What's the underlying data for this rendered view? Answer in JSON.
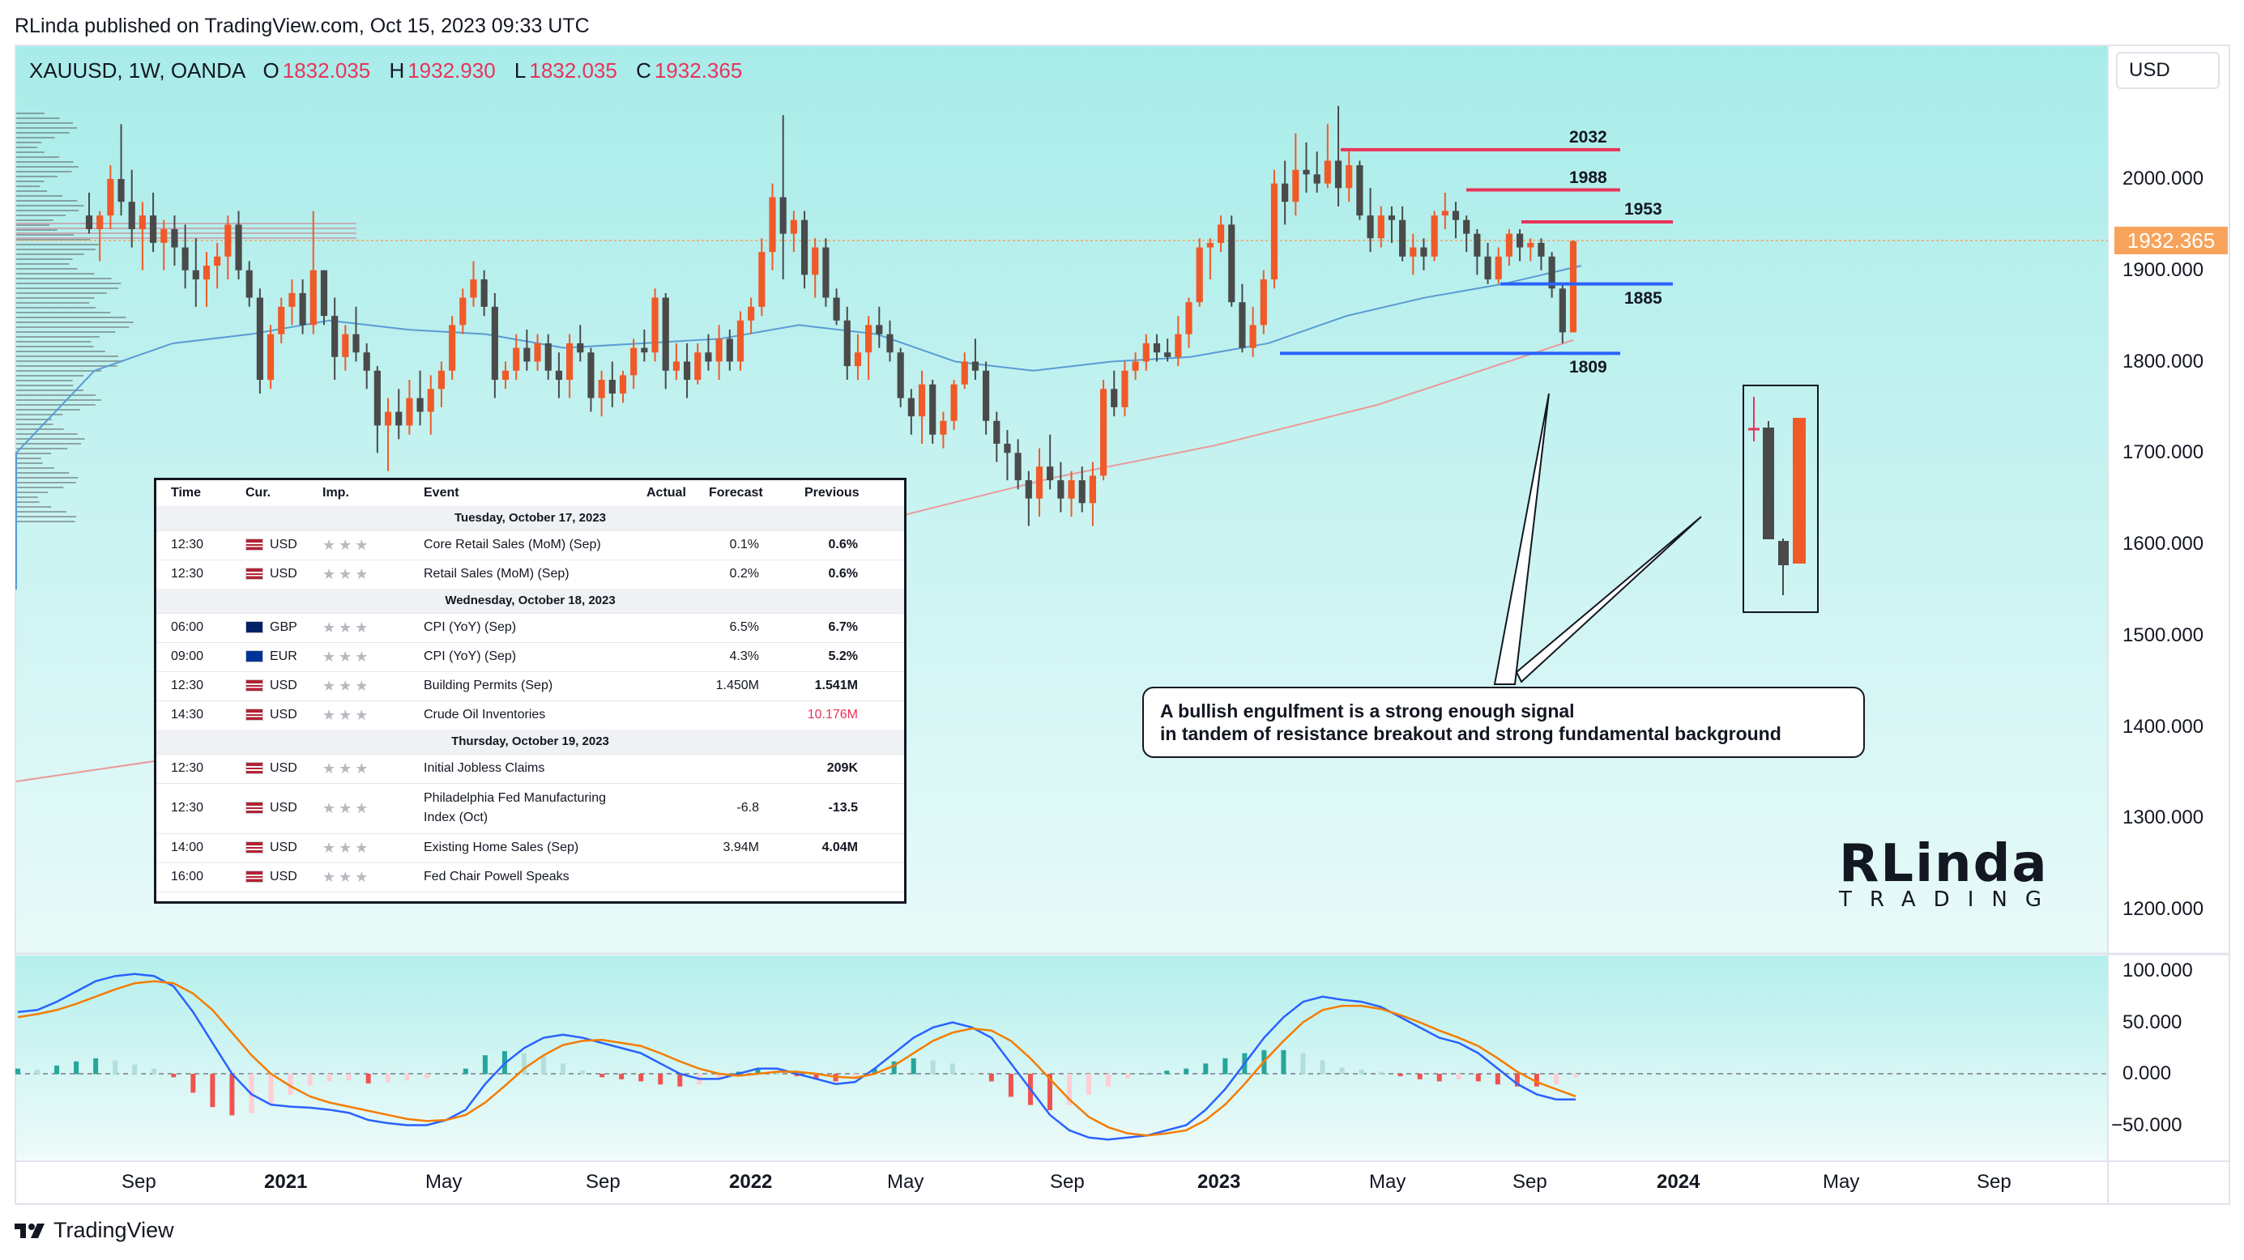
{
  "header": {
    "published": "RLinda published on TradingView.com, Oct 15, 2023 09:33 UTC"
  },
  "legend": {
    "symbol": "XAUUSD, 1W, OANDA",
    "o_label": "O",
    "o_value": "1832.035",
    "h_label": "H",
    "h_value": "1932.930",
    "l_label": "L",
    "l_value": "1832.035",
    "c_label": "C",
    "c_value": "1932.365"
  },
  "currency_button": "USD",
  "last_price_tag": "1932.365",
  "footer_brand": "TradingView",
  "colors": {
    "up": "#f05a28",
    "down": "#4a4a4a",
    "resistance": "#e8345a",
    "support": "#2962ff",
    "bg_top": "#b2f0ee",
    "ema_blue": "#5b9bd5",
    "sma_red": "#e89a9a"
  },
  "chart_data": [
    {
      "type": "candlestick",
      "title": "",
      "xlabel": "",
      "ylabel": "",
      "x_ticks": [
        "Sep",
        "2021",
        "May",
        "Sep",
        "2022",
        "May",
        "Sep",
        "2023",
        "May",
        "Sep",
        "2024",
        "May",
        "Sep"
      ],
      "y_ticks": [
        "2000.000",
        "1900.000",
        "1800.000",
        "1700.000",
        "1600.000",
        "1500.000",
        "1400.000",
        "1300.000",
        "1200.000"
      ],
      "ylim": [
        1150,
        2070
      ],
      "candles": [
        [
          1960,
          1985,
          1940,
          1945
        ],
        [
          1945,
          1965,
          1910,
          1960
        ],
        [
          1960,
          2015,
          1945,
          2000
        ],
        [
          2000,
          2060,
          1960,
          1975
        ],
        [
          1975,
          2010,
          1925,
          1945
        ],
        [
          1945,
          1975,
          1900,
          1960
        ],
        [
          1960,
          1985,
          1920,
          1930
        ],
        [
          1930,
          1955,
          1900,
          1945
        ],
        [
          1945,
          1960,
          1905,
          1925
        ],
        [
          1925,
          1950,
          1880,
          1900
        ],
        [
          1900,
          1935,
          1860,
          1890
        ],
        [
          1890,
          1920,
          1860,
          1905
        ],
        [
          1905,
          1930,
          1880,
          1915
        ],
        [
          1915,
          1960,
          1890,
          1950
        ],
        [
          1950,
          1965,
          1890,
          1900
        ],
        [
          1900,
          1910,
          1860,
          1870
        ],
        [
          1870,
          1880,
          1765,
          1780
        ],
        [
          1780,
          1840,
          1770,
          1830
        ],
        [
          1830,
          1870,
          1820,
          1860
        ],
        [
          1860,
          1890,
          1840,
          1875
        ],
        [
          1875,
          1890,
          1830,
          1840
        ],
        [
          1840,
          1965,
          1830,
          1900
        ],
        [
          1900,
          1900,
          1840,
          1850
        ],
        [
          1850,
          1870,
          1780,
          1805
        ],
        [
          1805,
          1840,
          1790,
          1830
        ],
        [
          1830,
          1860,
          1800,
          1810
        ],
        [
          1810,
          1820,
          1770,
          1790
        ],
        [
          1790,
          1795,
          1700,
          1730
        ],
        [
          1730,
          1760,
          1680,
          1745
        ],
        [
          1745,
          1770,
          1715,
          1730
        ],
        [
          1730,
          1780,
          1720,
          1760
        ],
        [
          1760,
          1790,
          1730,
          1745
        ],
        [
          1745,
          1785,
          1720,
          1770
        ],
        [
          1770,
          1800,
          1750,
          1790
        ],
        [
          1790,
          1850,
          1780,
          1840
        ],
        [
          1840,
          1880,
          1830,
          1870
        ],
        [
          1870,
          1910,
          1860,
          1890
        ],
        [
          1890,
          1900,
          1850,
          1860
        ],
        [
          1860,
          1875,
          1760,
          1780
        ],
        [
          1780,
          1800,
          1770,
          1790
        ],
        [
          1790,
          1830,
          1780,
          1815
        ],
        [
          1815,
          1835,
          1790,
          1800
        ],
        [
          1800,
          1830,
          1790,
          1820
        ],
        [
          1820,
          1830,
          1780,
          1790
        ],
        [
          1790,
          1810,
          1760,
          1780
        ],
        [
          1780,
          1830,
          1760,
          1820
        ],
        [
          1820,
          1840,
          1800,
          1810
        ],
        [
          1810,
          1815,
          1745,
          1760
        ],
        [
          1760,
          1790,
          1740,
          1780
        ],
        [
          1780,
          1800,
          1750,
          1765
        ],
        [
          1765,
          1790,
          1755,
          1785
        ],
        [
          1785,
          1825,
          1770,
          1815
        ],
        [
          1815,
          1835,
          1800,
          1810
        ],
        [
          1810,
          1880,
          1800,
          1870
        ],
        [
          1870,
          1875,
          1770,
          1790
        ],
        [
          1790,
          1820,
          1780,
          1800
        ],
        [
          1800,
          1820,
          1760,
          1780
        ],
        [
          1780,
          1820,
          1775,
          1810
        ],
        [
          1810,
          1830,
          1790,
          1800
        ],
        [
          1800,
          1840,
          1780,
          1825
        ],
        [
          1825,
          1835,
          1790,
          1800
        ],
        [
          1800,
          1855,
          1790,
          1845
        ],
        [
          1845,
          1870,
          1830,
          1860
        ],
        [
          1860,
          1935,
          1850,
          1920
        ],
        [
          1920,
          1995,
          1900,
          1980
        ],
        [
          1980,
          2070,
          1890,
          1940
        ],
        [
          1940,
          1965,
          1920,
          1955
        ],
        [
          1955,
          1965,
          1880,
          1895
        ],
        [
          1895,
          1935,
          1870,
          1925
        ],
        [
          1925,
          1935,
          1860,
          1870
        ],
        [
          1870,
          1880,
          1840,
          1845
        ],
        [
          1845,
          1860,
          1780,
          1795
        ],
        [
          1795,
          1830,
          1780,
          1810
        ],
        [
          1810,
          1850,
          1780,
          1840
        ],
        [
          1840,
          1860,
          1815,
          1830
        ],
        [
          1830,
          1845,
          1800,
          1810
        ],
        [
          1810,
          1815,
          1750,
          1760
        ],
        [
          1760,
          1770,
          1720,
          1740
        ],
        [
          1740,
          1790,
          1710,
          1775
        ],
        [
          1775,
          1780,
          1710,
          1720
        ],
        [
          1720,
          1745,
          1705,
          1735
        ],
        [
          1735,
          1780,
          1725,
          1775
        ],
        [
          1775,
          1810,
          1770,
          1800
        ],
        [
          1800,
          1825,
          1780,
          1790
        ],
        [
          1790,
          1800,
          1720,
          1735
        ],
        [
          1735,
          1745,
          1690,
          1710
        ],
        [
          1710,
          1725,
          1670,
          1700
        ],
        [
          1700,
          1715,
          1660,
          1670
        ],
        [
          1670,
          1680,
          1620,
          1650
        ],
        [
          1650,
          1705,
          1630,
          1685
        ],
        [
          1685,
          1720,
          1660,
          1670
        ],
        [
          1670,
          1690,
          1635,
          1650
        ],
        [
          1650,
          1680,
          1630,
          1670
        ],
        [
          1670,
          1685,
          1635,
          1645
        ],
        [
          1645,
          1690,
          1620,
          1675
        ],
        [
          1675,
          1780,
          1670,
          1770
        ],
        [
          1770,
          1790,
          1740,
          1750
        ],
        [
          1750,
          1800,
          1740,
          1790
        ],
        [
          1790,
          1810,
          1780,
          1800
        ],
        [
          1800,
          1830,
          1790,
          1820
        ],
        [
          1820,
          1830,
          1800,
          1810
        ],
        [
          1810,
          1825,
          1800,
          1805
        ],
        [
          1805,
          1850,
          1795,
          1830
        ],
        [
          1830,
          1870,
          1815,
          1865
        ],
        [
          1865,
          1935,
          1860,
          1925
        ],
        [
          1925,
          1935,
          1890,
          1930
        ],
        [
          1930,
          1960,
          1920,
          1950
        ],
        [
          1950,
          1960,
          1860,
          1865
        ],
        [
          1865,
          1885,
          1810,
          1815
        ],
        [
          1815,
          1860,
          1805,
          1840
        ],
        [
          1840,
          1900,
          1830,
          1890
        ],
        [
          1890,
          2010,
          1880,
          1995
        ],
        [
          1995,
          2020,
          1950,
          1975
        ],
        [
          1975,
          2050,
          1960,
          2010
        ],
        [
          2010,
          2040,
          1985,
          2005
        ],
        [
          2005,
          2030,
          1985,
          1995
        ],
        [
          1995,
          2060,
          1990,
          2020
        ],
        [
          2020,
          2080,
          1970,
          1990
        ],
        [
          1990,
          2030,
          1975,
          2015
        ],
        [
          2015,
          2020,
          1955,
          1960
        ],
        [
          1960,
          1990,
          1920,
          1935
        ],
        [
          1935,
          1970,
          1925,
          1960
        ],
        [
          1960,
          1970,
          1930,
          1955
        ],
        [
          1955,
          1970,
          1910,
          1915
        ],
        [
          1915,
          1940,
          1895,
          1925
        ],
        [
          1925,
          1935,
          1900,
          1915
        ],
        [
          1915,
          1965,
          1910,
          1960
        ],
        [
          1960,
          1985,
          1945,
          1965
        ],
        [
          1965,
          1975,
          1935,
          1955
        ],
        [
          1955,
          1960,
          1920,
          1940
        ],
        [
          1940,
          1945,
          1895,
          1915
        ],
        [
          1915,
          1930,
          1885,
          1890
        ],
        [
          1890,
          1925,
          1885,
          1915
        ],
        [
          1915,
          1945,
          1905,
          1940
        ],
        [
          1940,
          1945,
          1910,
          1925
        ],
        [
          1925,
          1935,
          1910,
          1930
        ],
        [
          1930,
          1935,
          1900,
          1915
        ],
        [
          1915,
          1920,
          1870,
          1880
        ],
        [
          1880,
          1885,
          1820,
          1832
        ],
        [
          1832,
          1933,
          1832,
          1932
        ]
      ],
      "levels": [
        {
          "label": "2032",
          "value": 2032,
          "color": "resistance"
        },
        {
          "label": "1988",
          "value": 1988,
          "color": "resistance"
        },
        {
          "label": "1953",
          "value": 1953,
          "color": "resistance"
        },
        {
          "label": "1885",
          "value": 1885,
          "color": "support"
        },
        {
          "label": "1809",
          "value": 1809,
          "color": "support"
        }
      ]
    },
    {
      "type": "line",
      "title": "",
      "y_ticks": [
        "100.000",
        "50.000",
        "0.000",
        "−50.000"
      ],
      "ylim": [
        -80,
        110
      ],
      "series": [
        {
          "values": [
            60,
            62,
            70,
            80,
            90,
            95,
            97,
            95,
            85,
            60,
            30,
            0,
            -20,
            -30,
            -32,
            -33,
            -35,
            -38,
            -45,
            -48,
            -50,
            -50,
            -45,
            -35,
            -10,
            10,
            25,
            35,
            38,
            35,
            30,
            25,
            20,
            10,
            0,
            -5,
            -5,
            0,
            5,
            5,
            0,
            -5,
            -10,
            -8,
            5,
            20,
            35,
            45,
            50,
            45,
            35,
            10,
            -15,
            -40,
            -55,
            -62,
            -64,
            -62,
            -60,
            -55,
            -50,
            -35,
            -15,
            10,
            35,
            55,
            70,
            75,
            72,
            70,
            65,
            55,
            45,
            35,
            30,
            20,
            5,
            -10,
            -20,
            -25,
            -25
          ]
        },
        {
          "values": [
            55,
            58,
            62,
            68,
            75,
            82,
            88,
            90,
            88,
            78,
            62,
            40,
            18,
            0,
            -12,
            -22,
            -28,
            -32,
            -36,
            -40,
            -44,
            -46,
            -45,
            -40,
            -28,
            -12,
            5,
            18,
            28,
            32,
            33,
            30,
            27,
            20,
            12,
            5,
            0,
            -2,
            0,
            2,
            2,
            0,
            -3,
            -4,
            0,
            8,
            20,
            32,
            40,
            44,
            42,
            32,
            15,
            -5,
            -25,
            -42,
            -52,
            -58,
            -60,
            -58,
            -55,
            -45,
            -30,
            -10,
            12,
            32,
            50,
            62,
            66,
            66,
            63,
            57,
            50,
            42,
            35,
            27,
            15,
            2,
            -8,
            -15,
            -22
          ]
        }
      ],
      "histogram": [
        5,
        4,
        8,
        12,
        15,
        13,
        9,
        5,
        -3,
        -18,
        -32,
        -40,
        -38,
        -30,
        -20,
        -11,
        -7,
        -6,
        -9,
        -8,
        -6,
        -4,
        0,
        5,
        18,
        22,
        20,
        17,
        10,
        3,
        -3,
        -5,
        -7,
        -10,
        -12,
        -10,
        -5,
        2,
        5,
        3,
        -2,
        -5,
        -7,
        -4,
        5,
        12,
        15,
        13,
        10,
        1,
        -7,
        -22,
        -30,
        -35,
        -30,
        -20,
        -12,
        -4,
        0,
        3,
        5,
        10,
        15,
        20,
        23,
        23,
        20,
        13,
        6,
        4,
        2,
        -2,
        -5,
        -7,
        -5,
        -7,
        -10,
        -12,
        -12,
        -10,
        -3
      ]
    }
  ],
  "calendar": {
    "headers": {
      "time": "Time",
      "cur": "Cur.",
      "imp": "Imp.",
      "event": "Event",
      "actual": "Actual",
      "forecast": "Forecast",
      "previous": "Previous"
    },
    "stars": "★★★",
    "day1": "Tuesday, October 17, 2023",
    "day2": "Wednesday, October 18, 2023",
    "day3": "Thursday, October 19, 2023",
    "rows": [
      {
        "time": "12:30",
        "cur": "USD",
        "event": "Core Retail Sales (MoM) (Sep)",
        "forecast": "0.1%",
        "previous": "0.6%"
      },
      {
        "time": "12:30",
        "cur": "USD",
        "event": "Retail Sales (MoM) (Sep)",
        "forecast": "0.2%",
        "previous": "0.6%"
      },
      {
        "time": "06:00",
        "cur": "GBP",
        "event": "CPI (YoY) (Sep)",
        "forecast": "6.5%",
        "previous": "6.7%"
      },
      {
        "time": "09:00",
        "cur": "EUR",
        "event": "CPI (YoY) (Sep)",
        "forecast": "4.3%",
        "previous": "5.2%"
      },
      {
        "time": "12:30",
        "cur": "USD",
        "event": "Building Permits (Sep)",
        "forecast": "1.450M",
        "previous": "1.541M"
      },
      {
        "time": "14:30",
        "cur": "USD",
        "event": "Crude Oil Inventories",
        "forecast": "",
        "previous": "10.176M"
      },
      {
        "time": "12:30",
        "cur": "USD",
        "event": "Initial Jobless Claims",
        "forecast": "",
        "previous": "209K"
      },
      {
        "time": "12:30",
        "cur": "USD",
        "event": "Philadelphia Fed Manufacturing",
        "event2": "Index (Oct)",
        "forecast": "-6.8",
        "previous": "-13.5"
      },
      {
        "time": "14:00",
        "cur": "USD",
        "event": "Existing Home Sales (Sep)",
        "forecast": "3.94M",
        "previous": "4.04M"
      },
      {
        "time": "16:00",
        "cur": "USD",
        "event": "Fed Chair Powell Speaks",
        "forecast": "",
        "previous": ""
      }
    ]
  },
  "annotation": {
    "line1": "A bullish engulfment is a strong enough signal",
    "line2": "in tandem of resistance breakout and strong fundamental background"
  },
  "logo": {
    "top": "RLinda",
    "bottom": "TRADING"
  }
}
